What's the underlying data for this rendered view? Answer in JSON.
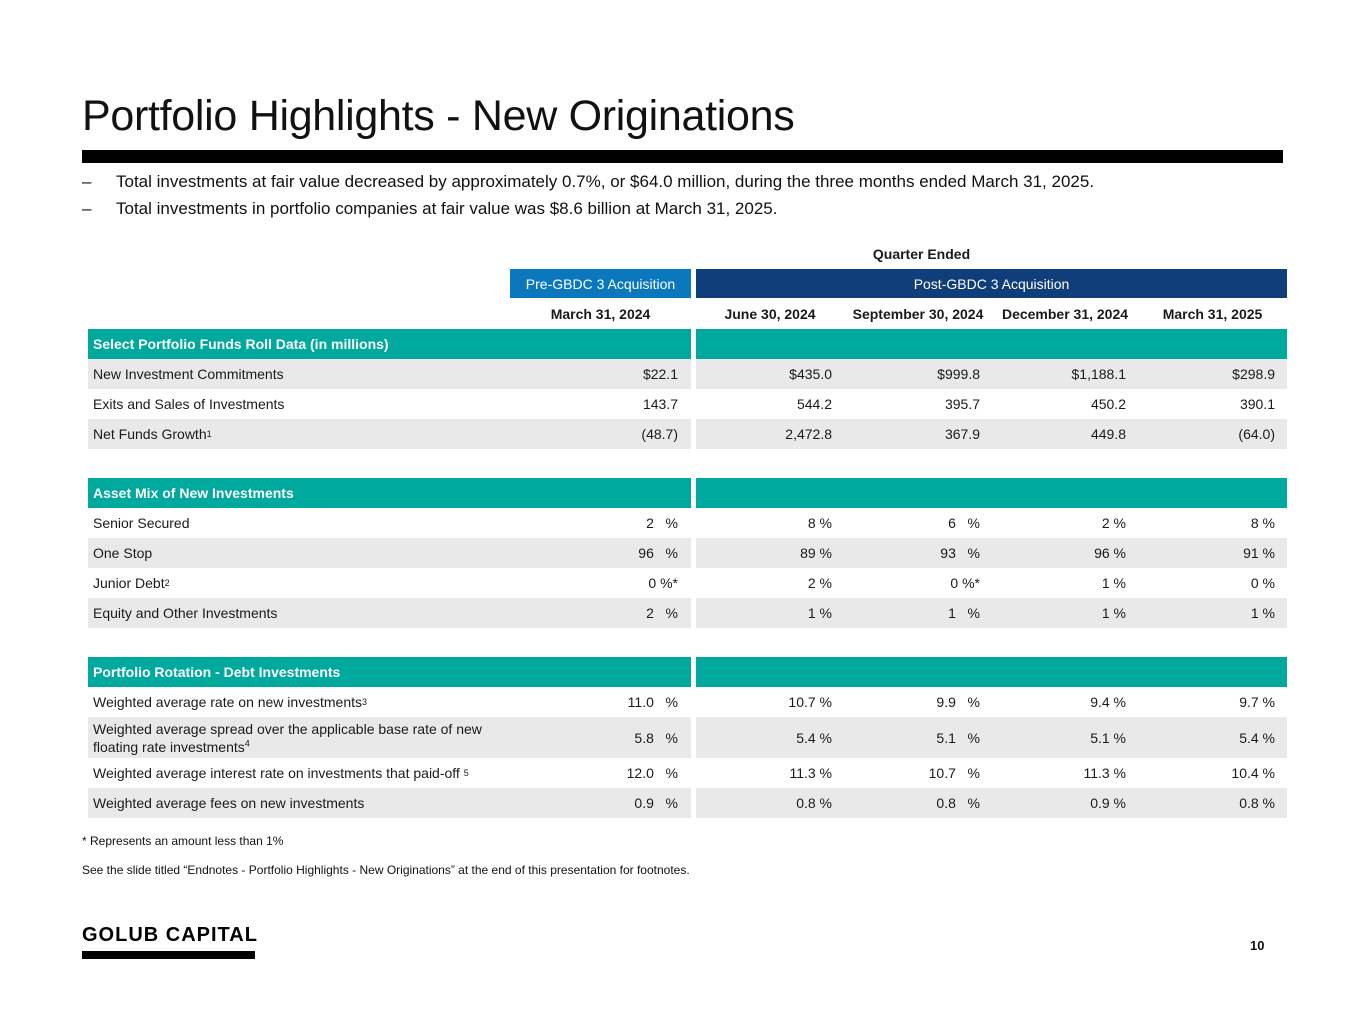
{
  "title": "Portfolio Highlights - New Originations",
  "bullets": [
    "Total investments at fair value decreased by approximately 0.7%, or $64.0 million, during the three months ended March 31, 2025.",
    "Total investments in portfolio companies at fair value was $8.6 billion at March 31, 2025."
  ],
  "bullet_marker": "–",
  "table": {
    "quarter_ended": "Quarter Ended",
    "pre_header": "Pre-GBDC 3 Acquisition",
    "post_header": "Post-GBDC 3 Acquisition",
    "dates": [
      "March 31, 2024",
      "June 30, 2024",
      "September 30, 2024",
      "December 31, 2024",
      "March 31, 2025"
    ],
    "sections": [
      {
        "title": "Select Portfolio Funds Roll Data (in millions)",
        "rows": [
          {
            "label": "New Investment Commitments",
            "sup": "",
            "values": [
              "$22.1",
              "$435.0",
              "$999.8",
              "$1,188.1",
              "$298.9"
            ]
          },
          {
            "label": "Exits and Sales of Investments",
            "sup": "",
            "values": [
              "143.7",
              "544.2",
              "395.7",
              "450.2",
              "390.1"
            ]
          },
          {
            "label": "Net Funds Growth",
            "sup": "1",
            "values": [
              "(48.7)",
              "2,472.8",
              "367.9",
              "449.8",
              "(64.0)"
            ]
          }
        ]
      },
      {
        "title": "Asset Mix of New Investments",
        "rows": [
          {
            "label": "Senior Secured",
            "sup": "",
            "values": [
              "2   %",
              "8 %",
              "6   %",
              "2 %",
              "8 %"
            ]
          },
          {
            "label": "One Stop",
            "sup": "",
            "values": [
              "96   %",
              "89 %",
              "93   %",
              "96 %",
              "91 %"
            ]
          },
          {
            "label": "Junior Debt",
            "sup": "2",
            "values": [
              "0 %*",
              "2 %",
              "0 %*",
              "1 %",
              "0 %"
            ]
          },
          {
            "label": "Equity and Other Investments",
            "sup": "",
            "values": [
              "2   %",
              "1 %",
              "1   %",
              "1 %",
              "1 %"
            ]
          }
        ]
      },
      {
        "title": "Portfolio Rotation - Debt Investments",
        "rows": [
          {
            "label": "Weighted average rate on new investments",
            "sup": "3",
            "values": [
              "11.0   %",
              "10.7 %",
              "9.9   %",
              "9.4 %",
              "9.7 %"
            ]
          },
          {
            "label": "Weighted average spread over the applicable base rate of new floating rate investments",
            "sup": "4",
            "values": [
              "5.8   %",
              "5.4 %",
              "5.1   %",
              "5.1 %",
              "5.4 %"
            ]
          },
          {
            "label": "Weighted average interest rate on investments that paid-off",
            "sup": "5",
            "values": [
              "12.0   %",
              "11.3 %",
              "10.7   %",
              "11.3 %",
              "10.4 %"
            ]
          },
          {
            "label": "Weighted average fees on new investments",
            "sup": "",
            "values": [
              "0.9   %",
              "0.8 %",
              "0.8   %",
              "0.9 %",
              "0.8 %"
            ]
          }
        ]
      }
    ]
  },
  "footnotes": {
    "asterisk": "* Represents an amount less than 1%",
    "see_slide": "See the slide titled “Endnotes - Portfolio Highlights - New Originations” at the end of this presentation for footnotes."
  },
  "logo_text": "GOLUB CAPITAL",
  "page_number": "10",
  "colors": {
    "teal": "#00a99d",
    "pre_blue": "#0b77bd",
    "post_navy": "#0f3e7a",
    "row_shade": "#e9e9e9"
  }
}
